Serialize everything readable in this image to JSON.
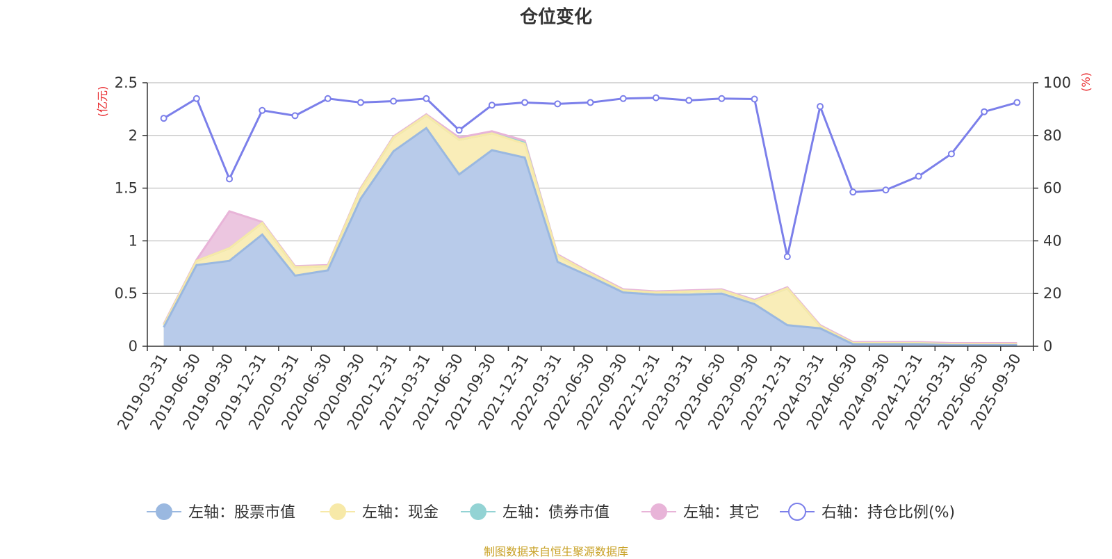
{
  "chart_data": {
    "type": "area",
    "title": "仓位变化",
    "left_axis_unit": "(亿元)",
    "right_axis_unit": "(%)",
    "ylim_left": [
      0,
      2.5
    ],
    "yticks_left": [
      "0",
      "0.5",
      "1",
      "1.5",
      "2",
      "2.5"
    ],
    "ylim_right": [
      0,
      100
    ],
    "yticks_right": [
      "0",
      "20",
      "40",
      "60",
      "80",
      "100"
    ],
    "grid": true,
    "legend_position": "bottom",
    "categories": [
      "2019-03-31",
      "2019-06-30",
      "2019-09-30",
      "2019-12-31",
      "2020-03-31",
      "2020-06-30",
      "2020-09-30",
      "2020-12-31",
      "2021-03-31",
      "2021-06-30",
      "2021-09-30",
      "2021-12-31",
      "2022-03-31",
      "2022-06-30",
      "2022-09-30",
      "2022-12-31",
      "2023-03-31",
      "2023-06-30",
      "2023-09-30",
      "2023-12-31",
      "2024-03-31",
      "2024-06-30",
      "2024-09-30",
      "2024-12-31",
      "2025-03-31",
      "2025-06-30",
      "2025-09-30"
    ],
    "series": [
      {
        "name": "左轴：股票市值",
        "axis": "left",
        "color": "#9ab8e0",
        "fill": "#b8cbea",
        "values": [
          0.18,
          0.77,
          0.81,
          1.06,
          0.67,
          0.72,
          1.4,
          1.85,
          2.07,
          1.63,
          1.86,
          1.79,
          0.8,
          0.66,
          0.51,
          0.49,
          0.49,
          0.5,
          0.4,
          0.2,
          0.17,
          0.02,
          0.02,
          0.02,
          0.01,
          0.01,
          0.01
        ]
      },
      {
        "name": "左轴：现金",
        "axis": "left",
        "color": "#f7e9a8",
        "fill": "#f9edb8",
        "values": [
          0.02,
          0.04,
          0.12,
          0.11,
          0.08,
          0.04,
          0.09,
          0.13,
          0.12,
          0.33,
          0.16,
          0.13,
          0.06,
          0.03,
          0.02,
          0.02,
          0.03,
          0.03,
          0.03,
          0.35,
          0.02,
          0.01,
          0.01,
          0.01,
          0.01,
          0.01,
          0.01
        ]
      },
      {
        "name": "左轴：债券市值",
        "axis": "left",
        "color": "#93d3d4",
        "fill": "#b5e2e2",
        "values": [
          0,
          0,
          0,
          0,
          0,
          0,
          0,
          0,
          0,
          0,
          0,
          0.01,
          0,
          0,
          0,
          0,
          0,
          0,
          0,
          0,
          0,
          0,
          0,
          0,
          0,
          0,
          0
        ]
      },
      {
        "name": "左轴：其它",
        "axis": "left",
        "color": "#e8b4d8",
        "fill": "#ecc6e0",
        "values": [
          0.01,
          0.01,
          0.35,
          0.01,
          0.01,
          0.01,
          0.01,
          0.01,
          0.01,
          0.02,
          0.02,
          0.02,
          0.01,
          0.01,
          0.01,
          0.01,
          0.01,
          0.01,
          0.01,
          0.01,
          0.01,
          0.01,
          0.01,
          0.01,
          0.01,
          0.01,
          0.01
        ]
      },
      {
        "name": "右轴：持仓比例(%)",
        "axis": "right",
        "color": "#7b7fea",
        "values": [
          86.5,
          94,
          63.5,
          89.5,
          87.5,
          94,
          92.5,
          93,
          94,
          82,
          91.5,
          92.5,
          92,
          92.5,
          94,
          94.3,
          93.3,
          94,
          93.8,
          34,
          91,
          58.5,
          59.3,
          64.5,
          73,
          89,
          92.5
        ]
      }
    ]
  },
  "source_note": "制图数据来自恒生聚源数据库"
}
